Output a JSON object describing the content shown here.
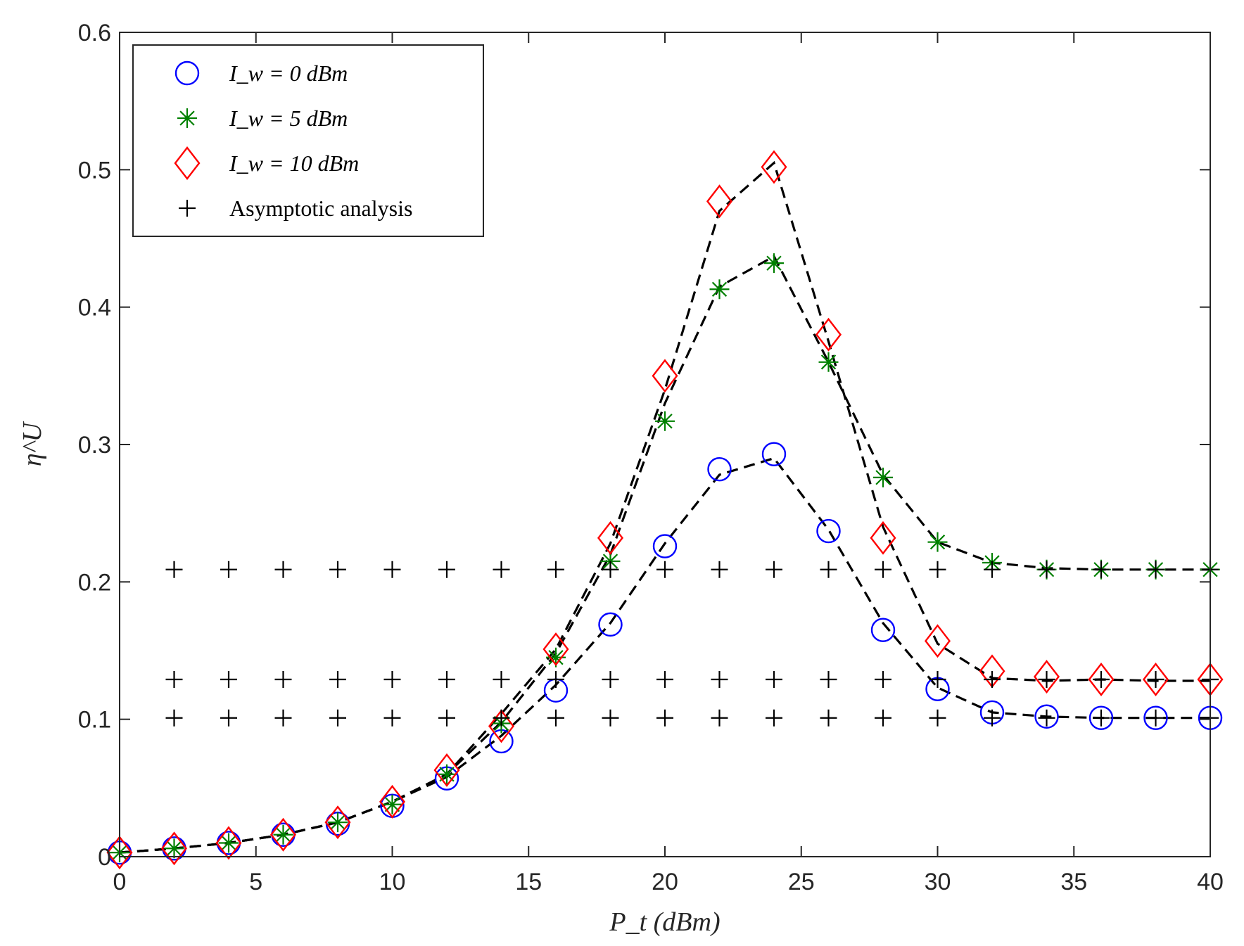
{
  "chart_data": {
    "type": "line",
    "title": "",
    "xlabel": "P_t (dBm)",
    "ylabel": "η^U",
    "xlim": [
      0,
      40
    ],
    "ylim": [
      0,
      0.6
    ],
    "xticks": [
      0,
      5,
      10,
      15,
      20,
      25,
      30,
      35,
      40
    ],
    "yticks": [
      0,
      0.1,
      0.2,
      0.3,
      0.4,
      0.5,
      0.6
    ],
    "xtick_labels": [
      "0",
      "5",
      "10",
      "15",
      "20",
      "25",
      "30",
      "35",
      "40"
    ],
    "ytick_labels": [
      "0",
      "0.1",
      "0.2",
      "0.3",
      "0.4",
      "0.5",
      "0.6"
    ],
    "grid": false,
    "legend_position": "top-left",
    "x": [
      0,
      2,
      4,
      6,
      8,
      10,
      12,
      14,
      16,
      18,
      20,
      22,
      24,
      26,
      28,
      30,
      32,
      34,
      36,
      38,
      40
    ],
    "series": [
      {
        "name": "I_w = 0 dBm",
        "legend_label": "I_w = 0 dBm",
        "marker": "circle",
        "color": "#0000ff",
        "values": [
          0.003,
          0.006,
          0.01,
          0.016,
          0.024,
          0.037,
          0.057,
          0.084,
          0.121,
          0.169,
          0.226,
          0.282,
          0.293,
          0.237,
          0.165,
          0.122,
          0.105,
          0.102,
          0.101,
          0.101,
          0.101
        ],
        "line_values": [
          0.003,
          0.006,
          0.01,
          0.016,
          0.025,
          0.04,
          0.058,
          0.088,
          0.125,
          0.17,
          0.228,
          0.278,
          0.29,
          0.238,
          0.17,
          0.123,
          0.105,
          0.102,
          0.101,
          0.101,
          0.101
        ]
      },
      {
        "name": "I_w = 5 dBm",
        "legend_label": "I_w = 5 dBm",
        "marker": "asterisk",
        "color": "#008000",
        "values": [
          0.003,
          0.006,
          0.01,
          0.016,
          0.025,
          0.038,
          0.06,
          0.097,
          0.145,
          0.215,
          0.317,
          0.413,
          0.432,
          0.36,
          0.276,
          0.229,
          0.214,
          0.209,
          0.209,
          0.209,
          0.209
        ],
        "line_values": [
          0.003,
          0.006,
          0.01,
          0.016,
          0.025,
          0.04,
          0.06,
          0.098,
          0.148,
          0.22,
          0.33,
          0.415,
          0.437,
          0.36,
          0.278,
          0.229,
          0.214,
          0.21,
          0.209,
          0.209,
          0.209
        ]
      },
      {
        "name": "I_w = 10 dBm",
        "legend_label": "I_w = 10 dBm",
        "marker": "diamond",
        "color": "#ff0000",
        "values": [
          0.003,
          0.006,
          0.01,
          0.016,
          0.025,
          0.04,
          0.063,
          0.095,
          0.151,
          0.232,
          0.35,
          0.477,
          0.502,
          0.38,
          0.232,
          0.157,
          0.135,
          0.131,
          0.129,
          0.129,
          0.129
        ],
        "line_values": [
          0.003,
          0.006,
          0.01,
          0.016,
          0.025,
          0.04,
          0.06,
          0.104,
          0.151,
          0.228,
          0.34,
          0.47,
          0.505,
          0.375,
          0.24,
          0.155,
          0.13,
          0.128,
          0.129,
          0.128,
          0.128
        ]
      },
      {
        "name": "Asymptotic analysis",
        "legend_label": "Asymptotic analysis",
        "marker": "plus",
        "color": "#000000",
        "x": [
          2,
          4,
          6,
          8,
          10,
          12,
          14,
          16,
          18,
          20,
          22,
          24,
          26,
          28,
          30,
          32,
          34,
          36,
          38,
          40
        ],
        "levels": [
          0.101,
          0.129,
          0.209
        ]
      }
    ],
    "line_style": "dashed black"
  }
}
